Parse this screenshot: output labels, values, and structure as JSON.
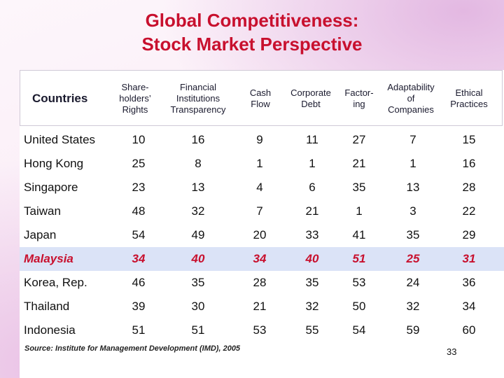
{
  "title": {
    "line1": "Global Competitiveness:",
    "line2": "Stock Market Perspective"
  },
  "table": {
    "headers": [
      [
        "Countries"
      ],
      [
        "Share-",
        "holders’",
        "Rights"
      ],
      [
        "Financial",
        "Institutions",
        "Transparency"
      ],
      [
        "Cash",
        "Flow"
      ],
      [
        "Corporate",
        "Debt"
      ],
      [
        "Factor-",
        "ing"
      ],
      [
        "Adaptability",
        "of",
        "Companies"
      ],
      [
        "Ethical",
        "Practices"
      ]
    ],
    "rows": [
      {
        "country": "United States",
        "values": [
          "10",
          "16",
          "9",
          "11",
          "27",
          "7",
          "15"
        ]
      },
      {
        "country": "Hong Kong",
        "values": [
          "25",
          "8",
          "1",
          "1",
          "21",
          "1",
          "16"
        ]
      },
      {
        "country": "Singapore",
        "values": [
          "23",
          "13",
          "4",
          "6",
          "35",
          "13",
          "28"
        ]
      },
      {
        "country": "Taiwan",
        "values": [
          "48",
          "32",
          "7",
          "21",
          "1",
          "3",
          "22"
        ]
      },
      {
        "country": "Japan",
        "values": [
          "54",
          "49",
          "20",
          "33",
          "41",
          "35",
          "29"
        ]
      },
      {
        "country": "Malaysia",
        "values": [
          "34",
          "40",
          "34",
          "40",
          "51",
          "25",
          "31"
        ],
        "highlight": true
      },
      {
        "country": "Korea, Rep.",
        "values": [
          "46",
          "35",
          "28",
          "35",
          "53",
          "24",
          "36"
        ]
      },
      {
        "country": "Thailand",
        "values": [
          "39",
          "30",
          "21",
          "32",
          "50",
          "32",
          "34"
        ]
      },
      {
        "country": "Indonesia",
        "values": [
          "51",
          "51",
          "53",
          "55",
          "54",
          "59",
          "60"
        ]
      }
    ]
  },
  "source": "Source: Institute for Management Development (IMD), 2005",
  "page_number": "33",
  "colors": {
    "title": "#c8102e",
    "highlight_row_bg": "#dbe3f7",
    "highlight_text": "#c8102e"
  }
}
